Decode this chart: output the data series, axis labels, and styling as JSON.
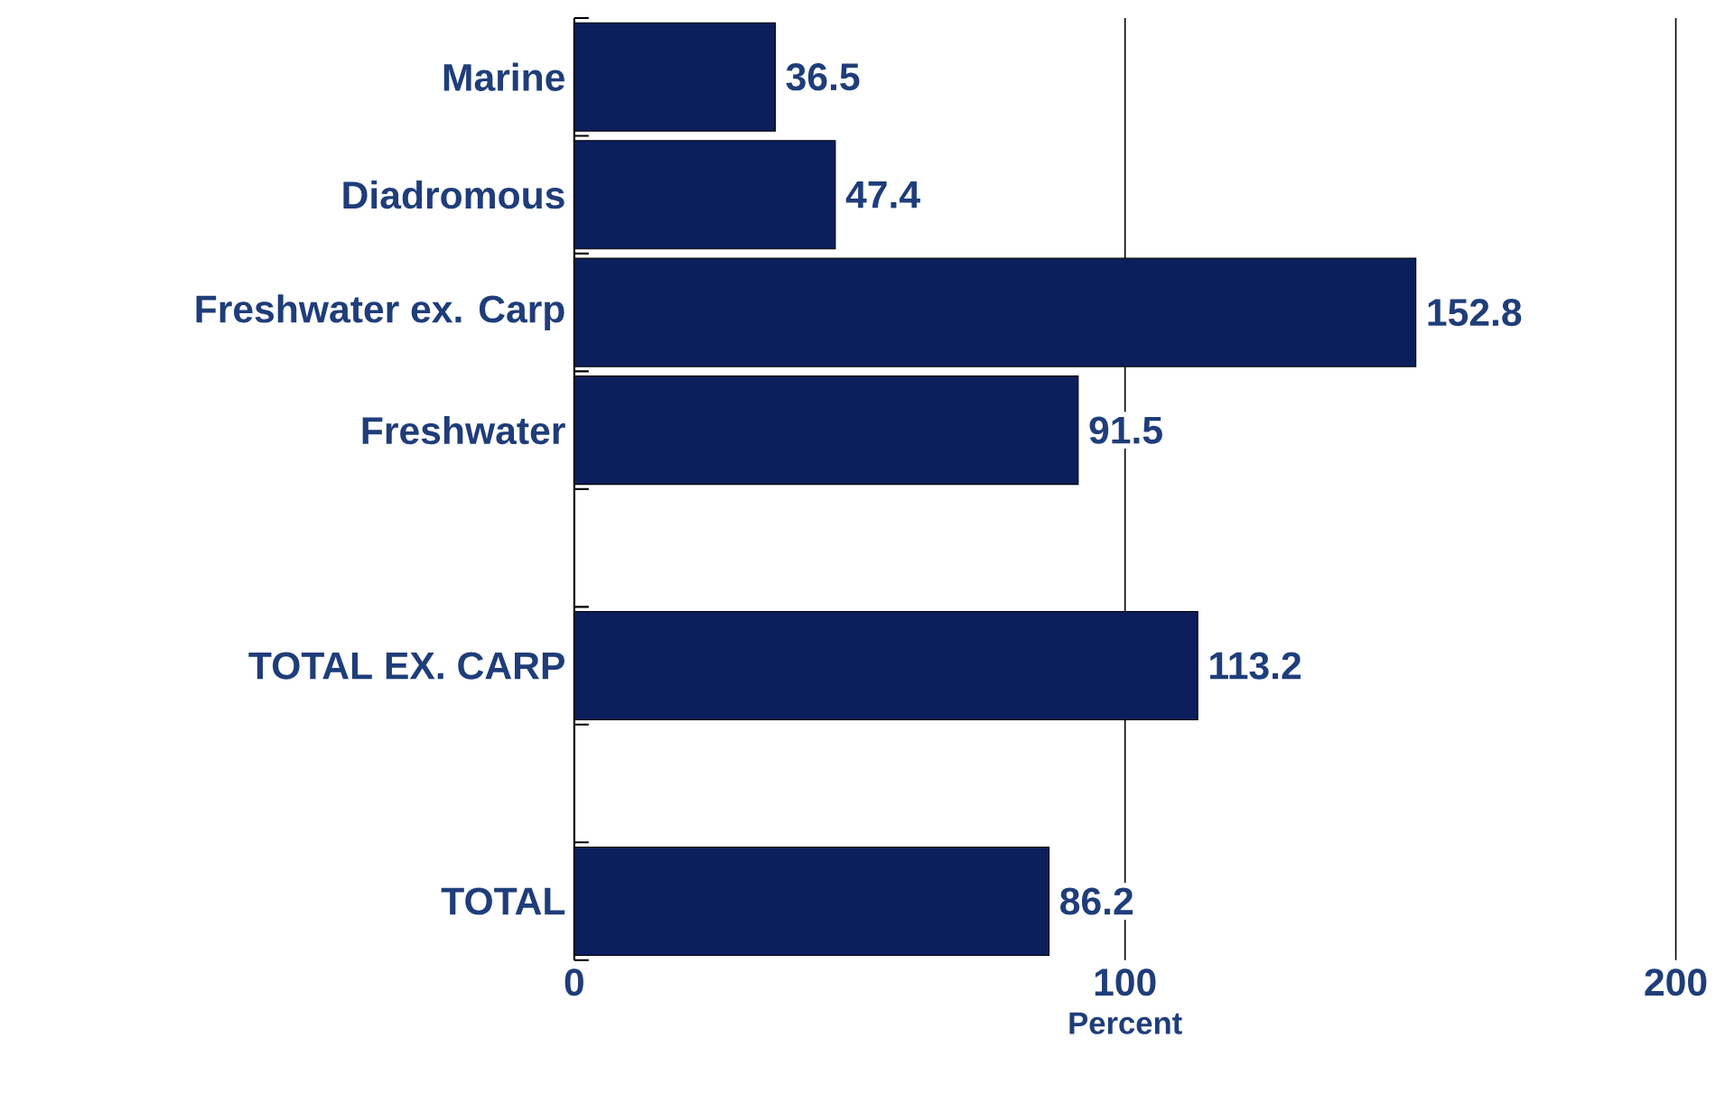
{
  "chart_data": {
    "type": "bar",
    "orientation": "horizontal",
    "xlabel": "Percent",
    "categories": [
      "Marine",
      "Diadromous",
      "Freshwater ex. Carp",
      "Freshwater",
      null,
      "TOTAL EX. CARP",
      null,
      "TOTAL"
    ],
    "values": [
      36.5,
      47.4,
      152.8,
      91.5,
      null,
      113.2,
      null,
      86.2
    ],
    "color": "#0c1f5c",
    "data_labels": true,
    "xlim": [
      0,
      200
    ],
    "xticks": [
      0,
      100,
      200
    ],
    "grid": "x"
  }
}
